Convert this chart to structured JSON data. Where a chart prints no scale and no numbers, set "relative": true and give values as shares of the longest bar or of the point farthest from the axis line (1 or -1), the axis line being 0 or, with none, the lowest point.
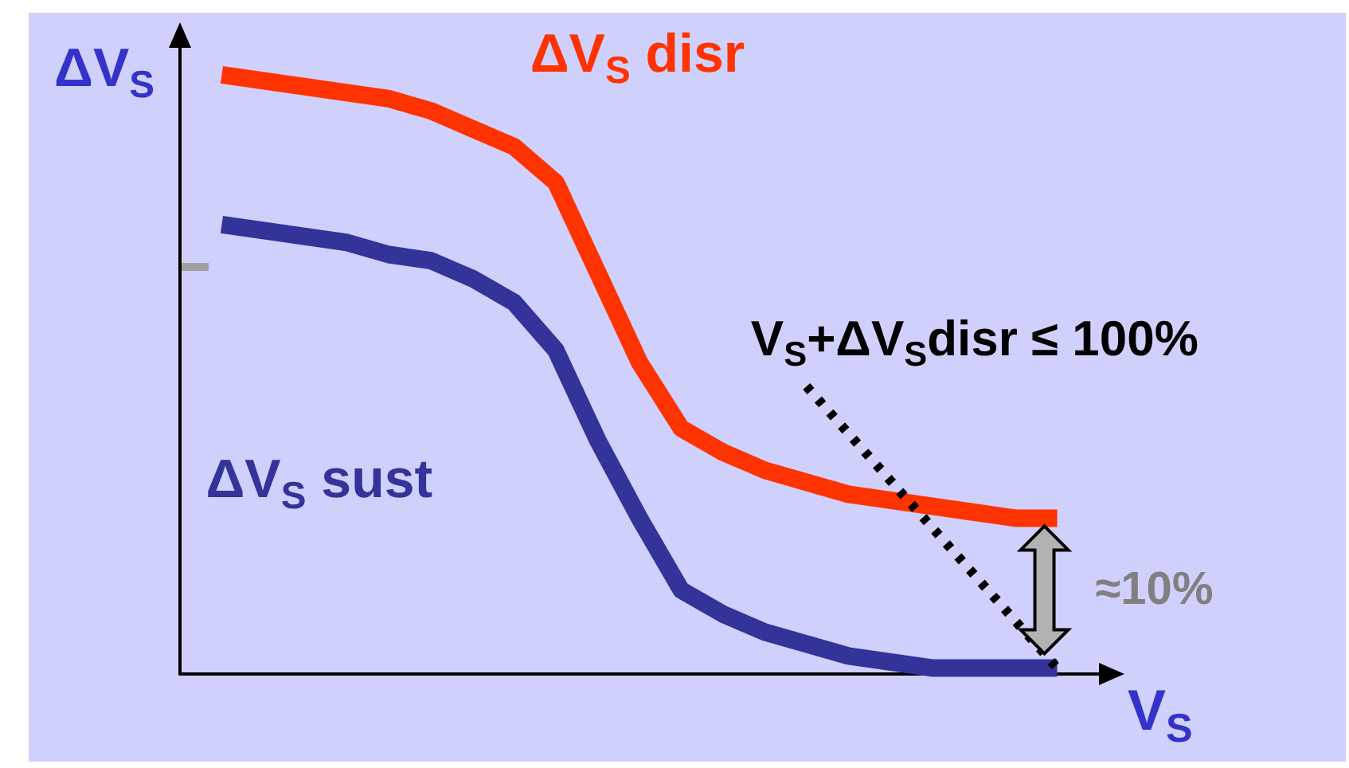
{
  "chart_data": {
    "type": "line",
    "relative": true,
    "xlabel": "V$_{S}$",
    "ylabel": "ΔV$_{S}$",
    "categories": [
      null,
      null,
      null,
      null,
      null,
      null,
      null,
      null,
      null,
      null,
      null,
      null,
      null,
      null,
      null,
      null,
      null,
      null,
      null,
      null,
      null,
      null,
      null
    ],
    "series": [
      {
        "name": "ΔV$_{S}$ disr",
        "color": "#ff3300",
        "values": [
          null,
          1,
          0.99,
          0.98,
          0.97,
          0.96,
          0.94,
          0.91,
          0.88,
          0.82,
          0.67,
          0.52,
          0.41,
          0.37,
          0.34,
          0.32,
          0.3,
          0.29,
          0.28,
          0.27,
          0.26,
          0.26,
          null
        ]
      },
      {
        "name": "ΔV$_{S}$ sust",
        "color": "#333399",
        "values": [
          null,
          0.75,
          0.74,
          0.73,
          0.72,
          0.7,
          0.69,
          0.66,
          0.62,
          0.54,
          0.39,
          0.26,
          0.14,
          0.1,
          0.07,
          0.05,
          0.03,
          0.02,
          0.01,
          0.01,
          0.01,
          0.01,
          null
        ]
      },
      {
        "name": "V$_{S}$+ΔV$_{S}$disr ≤ 100%",
        "color": "#000000",
        "line_style": "dotted",
        "values": [
          null,
          null,
          null,
          null,
          null,
          null,
          null,
          null,
          null,
          null,
          null,
          null,
          null,
          null,
          null,
          0.48,
          null,
          null,
          null,
          null,
          null,
          0.01,
          null
        ]
      }
    ],
    "annotations": [
      "≈10%"
    ],
    "marker": "none",
    "line_style": "solid",
    "legend": false,
    "grid": false
  }
}
